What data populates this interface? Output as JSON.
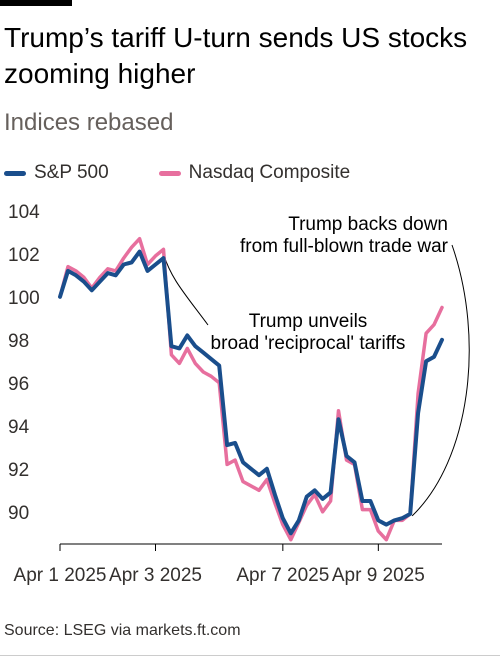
{
  "title": "Trump’s tariff U-turn sends US stocks zooming higher",
  "subtitle": "Indices rebased",
  "source": "Source: LSEG via markets.ft.com",
  "colors": {
    "sp500": "#1a4e8c",
    "nasdaq": "#e76f9e"
  },
  "chart_data": {
    "type": "line",
    "title": "Trump’s tariff U-turn sends US stocks zooming higher",
    "subtitle": "Indices rebased",
    "xlabel": "",
    "ylabel": "",
    "ylim": [
      88.5,
      104.5
    ],
    "yticks": [
      90,
      92,
      94,
      96,
      98,
      100,
      102,
      104
    ],
    "grid": false,
    "legend_position": "top-left",
    "x_tick_labels": [
      "Apr 1 2025",
      "Apr 3 2025",
      "Apr 7 2025",
      "Apr 9 2025"
    ],
    "x_tick_positions": [
      0,
      12,
      28,
      40
    ],
    "x": [
      0,
      1,
      2,
      3,
      4,
      5,
      6,
      7,
      8,
      9,
      10,
      11,
      12,
      13,
      14,
      15,
      16,
      17,
      18,
      19,
      20,
      21,
      22,
      23,
      24,
      25,
      26,
      27,
      28,
      29,
      30,
      31,
      32,
      33,
      34,
      35,
      36,
      37,
      38,
      39,
      40,
      41,
      42,
      43,
      44,
      45,
      46,
      47,
      48
    ],
    "series": [
      {
        "name": "S&P 500",
        "values": [
          100.0,
          101.2,
          101.0,
          100.7,
          100.3,
          100.7,
          101.1,
          101.0,
          101.5,
          101.6,
          102.1,
          101.2,
          101.5,
          101.8,
          97.7,
          97.6,
          98.2,
          97.7,
          97.4,
          97.1,
          96.8,
          93.1,
          93.2,
          92.3,
          92.0,
          91.7,
          92.0,
          90.8,
          89.7,
          89.0,
          89.6,
          90.7,
          91.0,
          90.6,
          90.9,
          94.3,
          92.6,
          92.3,
          90.5,
          90.5,
          89.6,
          89.4,
          89.6,
          89.7,
          89.9,
          94.6,
          97.0,
          97.2,
          98.0
        ]
      },
      {
        "name": "Nasdaq Composite",
        "values": [
          100.0,
          101.4,
          101.2,
          100.9,
          100.4,
          100.9,
          101.3,
          101.2,
          101.8,
          102.3,
          102.7,
          101.5,
          101.9,
          102.2,
          97.3,
          96.9,
          97.6,
          96.9,
          96.5,
          96.3,
          96.0,
          92.2,
          92.4,
          91.4,
          91.2,
          91.0,
          91.5,
          90.4,
          89.4,
          88.7,
          89.5,
          90.3,
          90.8,
          90.0,
          90.5,
          94.7,
          92.4,
          92.2,
          90.1,
          90.1,
          89.1,
          88.7,
          89.6,
          89.6,
          89.9,
          95.5,
          98.3,
          98.7,
          99.5
        ]
      }
    ],
    "annotations": [
      {
        "lines": [
          "Trump unveils",
          "broad 'reciprocal' tariffs"
        ],
        "x": 13
      },
      {
        "lines": [
          "Trump backs down",
          "from full-blown trade war"
        ],
        "x": 44
      }
    ]
  }
}
